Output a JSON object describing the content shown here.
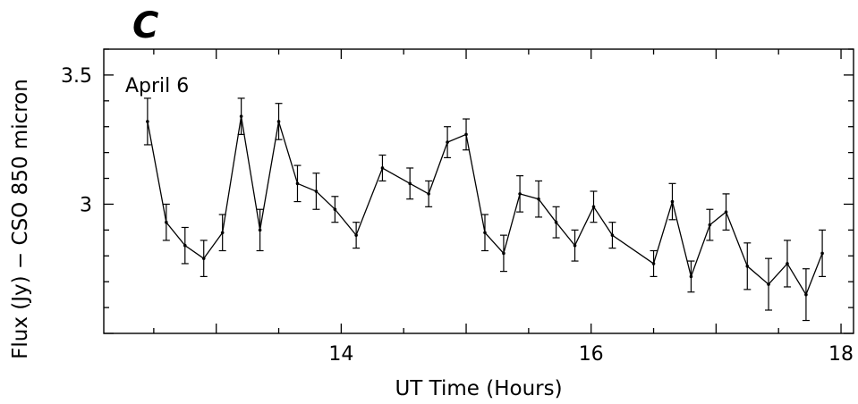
{
  "figure": {
    "panel_label": "C"
  },
  "chart_data": {
    "type": "line",
    "title": "",
    "xlabel": "UT Time (Hours)",
    "ylabel": "Flux (Jy) − CSO 850 micron",
    "annotation": "April 6",
    "xlim": [
      12.1,
      18.1
    ],
    "ylim": [
      2.5,
      3.6
    ],
    "x_ticks": [
      {
        "value": 14,
        "label": "14"
      },
      {
        "value": 16,
        "label": "16"
      },
      {
        "value": 18,
        "label": "18"
      }
    ],
    "y_ticks": [
      {
        "value": 3.0,
        "label": "3"
      },
      {
        "value": 3.5,
        "label": "3.5"
      }
    ],
    "grid": false,
    "series": [
      {
        "error_bars": true,
        "points": [
          {
            "x": 12.45,
            "y": 3.32,
            "err": 0.09
          },
          {
            "x": 12.6,
            "y": 2.93,
            "err": 0.07
          },
          {
            "x": 12.75,
            "y": 2.84,
            "err": 0.07
          },
          {
            "x": 12.9,
            "y": 2.79,
            "err": 0.07
          },
          {
            "x": 13.05,
            "y": 2.89,
            "err": 0.07
          },
          {
            "x": 13.2,
            "y": 3.34,
            "err": 0.07
          },
          {
            "x": 13.35,
            "y": 2.9,
            "err": 0.08
          },
          {
            "x": 13.5,
            "y": 3.32,
            "err": 0.07
          },
          {
            "x": 13.65,
            "y": 3.08,
            "err": 0.07
          },
          {
            "x": 13.8,
            "y": 3.05,
            "err": 0.07
          },
          {
            "x": 13.95,
            "y": 2.98,
            "err": 0.05
          },
          {
            "x": 14.12,
            "y": 2.88,
            "err": 0.05
          },
          {
            "x": 14.33,
            "y": 3.14,
            "err": 0.05
          },
          {
            "x": 14.55,
            "y": 3.08,
            "err": 0.06
          },
          {
            "x": 14.7,
            "y": 3.04,
            "err": 0.05
          },
          {
            "x": 14.85,
            "y": 3.24,
            "err": 0.06
          },
          {
            "x": 15.0,
            "y": 3.27,
            "err": 0.06
          },
          {
            "x": 15.15,
            "y": 2.89,
            "err": 0.07
          },
          {
            "x": 15.3,
            "y": 2.81,
            "err": 0.07
          },
          {
            "x": 15.43,
            "y": 3.04,
            "err": 0.07
          },
          {
            "x": 15.58,
            "y": 3.02,
            "err": 0.07
          },
          {
            "x": 15.72,
            "y": 2.93,
            "err": 0.06
          },
          {
            "x": 15.87,
            "y": 2.84,
            "err": 0.06
          },
          {
            "x": 16.02,
            "y": 2.99,
            "err": 0.06
          },
          {
            "x": 16.17,
            "y": 2.88,
            "err": 0.05
          },
          {
            "x": 16.5,
            "y": 2.77,
            "err": 0.05
          },
          {
            "x": 16.65,
            "y": 3.01,
            "err": 0.07
          },
          {
            "x": 16.8,
            "y": 2.72,
            "err": 0.06
          },
          {
            "x": 16.95,
            "y": 2.92,
            "err": 0.06
          },
          {
            "x": 17.08,
            "y": 2.97,
            "err": 0.07
          },
          {
            "x": 17.25,
            "y": 2.76,
            "err": 0.09
          },
          {
            "x": 17.42,
            "y": 2.69,
            "err": 0.1
          },
          {
            "x": 17.57,
            "y": 2.77,
            "err": 0.09
          },
          {
            "x": 17.72,
            "y": 2.65,
            "err": 0.1
          },
          {
            "x": 17.85,
            "y": 2.81,
            "err": 0.09
          }
        ]
      }
    ]
  }
}
